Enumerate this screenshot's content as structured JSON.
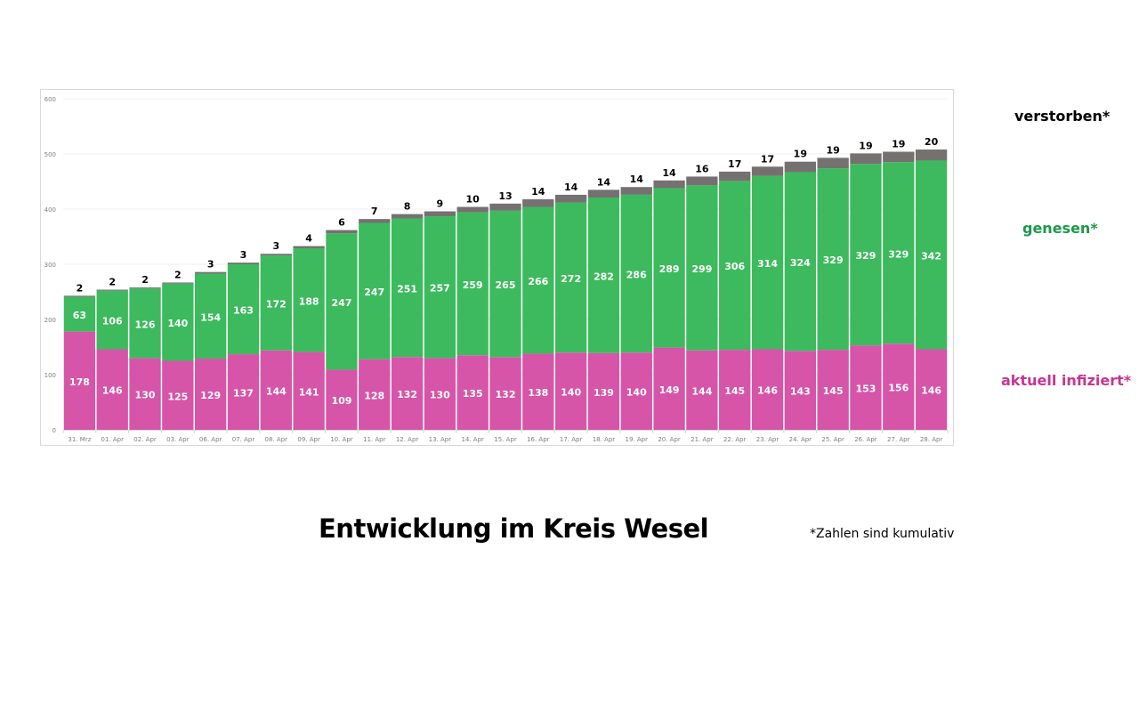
{
  "chart_data": {
    "type": "bar",
    "stacked": true,
    "title": "Entwicklung im Kreis Wesel",
    "footnote": "*Zahlen sind kumulativ",
    "xlabel": "",
    "ylabel": "",
    "ylim": [
      0,
      600
    ],
    "yticks": [
      0,
      100,
      200,
      300,
      400,
      500,
      600
    ],
    "grid": true,
    "legend_position": "right",
    "categories": [
      "31. Mrz",
      "01. Apr",
      "02. Apr",
      "03. Apr",
      "06. Apr",
      "07. Apr",
      "08. Apr",
      "09. Apr",
      "10. Apr",
      "11. Apr",
      "12. Apr",
      "13. Apr",
      "14. Apr",
      "15. Apr",
      "16. Apr",
      "17. Apr",
      "18. Apr",
      "19. Apr",
      "20. Apr",
      "21. Apr",
      "22. Apr",
      "23. Apr",
      "24. Apr",
      "25. Apr",
      "26. Apr",
      "27. Apr",
      "28. Apr"
    ],
    "series": [
      {
        "name": "aktuell infiziert*",
        "color": "#d655a8",
        "label_color": "#ffffff",
        "values": [
          178,
          146,
          130,
          125,
          129,
          137,
          144,
          141,
          109,
          128,
          132,
          130,
          135,
          132,
          138,
          140,
          139,
          140,
          149,
          144,
          145,
          146,
          143,
          145,
          153,
          156,
          146
        ]
      },
      {
        "name": "genesen*",
        "color": "#3dba5e",
        "label_color": "#ffffff",
        "values": [
          63,
          106,
          126,
          140,
          154,
          163,
          172,
          188,
          247,
          247,
          251,
          257,
          259,
          265,
          266,
          272,
          282,
          286,
          289,
          299,
          306,
          314,
          324,
          329,
          329,
          329,
          342
        ]
      },
      {
        "name": "verstorben*",
        "color": "#767171",
        "label_color": "#000000",
        "values": [
          2,
          2,
          2,
          2,
          3,
          3,
          3,
          4,
          6,
          7,
          8,
          9,
          10,
          13,
          14,
          14,
          14,
          14,
          14,
          16,
          17,
          17,
          19,
          19,
          19,
          19,
          20
        ]
      }
    ]
  },
  "legend": {
    "deceased": "verstorben*",
    "recovered": "genesen*",
    "infected": "aktuell infiziert*"
  }
}
